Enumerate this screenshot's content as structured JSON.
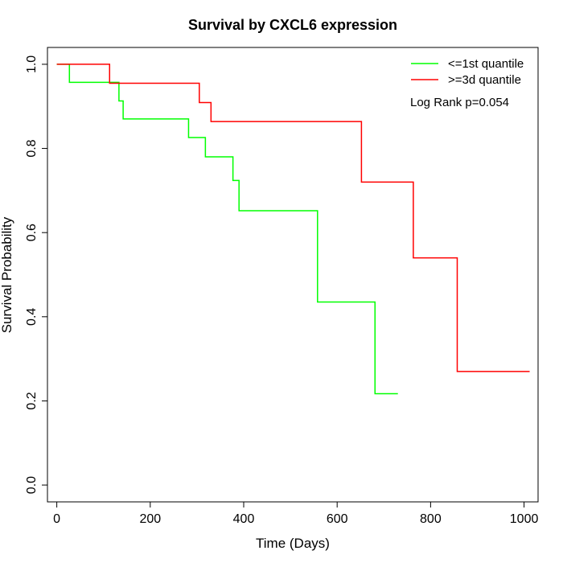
{
  "chart_data": {
    "type": "line",
    "title": "Survival by CXCL6 expression",
    "xlabel": "Time (Days)",
    "ylabel": "Survival Probability",
    "xlim": [
      -20,
      1030
    ],
    "ylim": [
      -0.04,
      1.04
    ],
    "xticks": [
      0,
      200,
      400,
      600,
      800,
      1000
    ],
    "yticks": [
      0.0,
      0.2,
      0.4,
      0.6,
      0.8,
      1.0
    ],
    "xtick_labels": [
      "0",
      "200",
      "400",
      "600",
      "800",
      "1000"
    ],
    "ytick_labels": [
      "0.0",
      "0.2",
      "0.4",
      "0.6",
      "0.8",
      "1.0"
    ],
    "grid": false,
    "legend_position": "top-right",
    "annotation": "Log Rank p=0.054",
    "series": [
      {
        "name": "<=1st quantile",
        "color": "#00ff00",
        "step": true,
        "x": [
          0,
          27,
          133,
          142,
          282,
          318,
          377,
          390,
          558,
          681,
          730
        ],
        "y": [
          1.0,
          0.957,
          0.913,
          0.87,
          0.826,
          0.78,
          0.724,
          0.652,
          0.435,
          0.217,
          0.217
        ]
      },
      {
        "name": ">=3d quantile",
        "color": "#ff0000",
        "step": true,
        "x": [
          0,
          113,
          305,
          330,
          652,
          763,
          857,
          1012
        ],
        "y": [
          1.0,
          0.955,
          0.909,
          0.864,
          0.72,
          0.54,
          0.27,
          0.27
        ]
      }
    ]
  }
}
